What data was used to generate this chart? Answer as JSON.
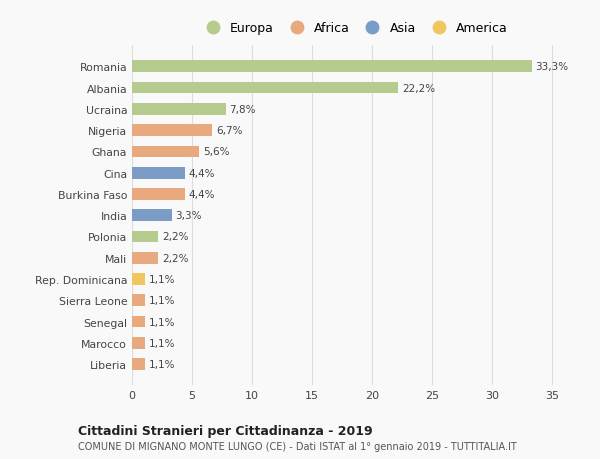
{
  "countries": [
    "Romania",
    "Albania",
    "Ucraina",
    "Nigeria",
    "Ghana",
    "Cina",
    "Burkina Faso",
    "India",
    "Polonia",
    "Mali",
    "Rep. Dominicana",
    "Sierra Leone",
    "Senegal",
    "Marocco",
    "Liberia"
  ],
  "values": [
    33.3,
    22.2,
    7.8,
    6.7,
    5.6,
    4.4,
    4.4,
    3.3,
    2.2,
    2.2,
    1.1,
    1.1,
    1.1,
    1.1,
    1.1
  ],
  "labels": [
    "33,3%",
    "22,2%",
    "7,8%",
    "6,7%",
    "5,6%",
    "4,4%",
    "4,4%",
    "3,3%",
    "2,2%",
    "2,2%",
    "1,1%",
    "1,1%",
    "1,1%",
    "1,1%",
    "1,1%"
  ],
  "continents": [
    "Europa",
    "Europa",
    "Europa",
    "Africa",
    "Africa",
    "Asia",
    "Africa",
    "Asia",
    "Europa",
    "Africa",
    "America",
    "Africa",
    "Africa",
    "Africa",
    "Africa"
  ],
  "colors": {
    "Europa": "#b5cc8e",
    "Africa": "#e8a97e",
    "Asia": "#7b9dc5",
    "America": "#f0c75e"
  },
  "xlim": [
    0,
    37
  ],
  "xticks": [
    0,
    5,
    10,
    15,
    20,
    25,
    30,
    35
  ],
  "title": "Cittadini Stranieri per Cittadinanza - 2019",
  "subtitle": "COMUNE DI MIGNANO MONTE LUNGO (CE) - Dati ISTAT al 1° gennaio 2019 - TUTTITALIA.IT",
  "background_color": "#f9f9f9",
  "grid_color": "#dddddd",
  "bar_height": 0.55
}
